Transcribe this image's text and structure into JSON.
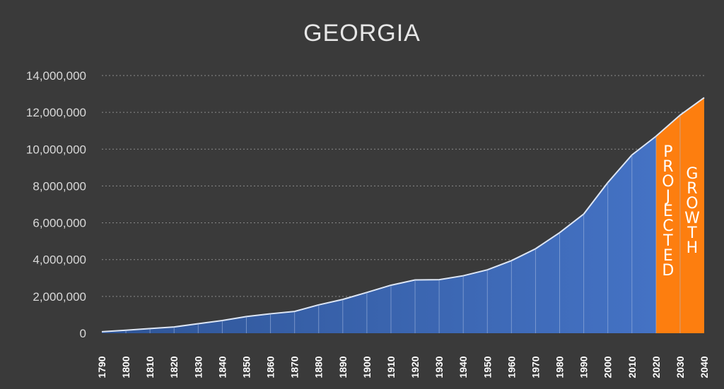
{
  "chart_data": {
    "type": "area",
    "title": "GEORGIA",
    "xlabel": "",
    "ylabel": "",
    "x": [
      "1790",
      "1800",
      "1810",
      "1820",
      "1830",
      "1840",
      "1850",
      "1860",
      "1870",
      "1880",
      "1890",
      "1900",
      "1910",
      "1920",
      "1930",
      "1940",
      "1950",
      "1960",
      "1970",
      "1980",
      "1990",
      "2000",
      "2010",
      "2020",
      "2030",
      "2040"
    ],
    "values": [
      82548,
      162686,
      252433,
      340989,
      516823,
      691392,
      906185,
      1057286,
      1184109,
      1542180,
      1837353,
      2216331,
      2609121,
      2895832,
      2908506,
      3123723,
      3444578,
      3943116,
      4589575,
      5463105,
      6478216,
      8186453,
      9687653,
      10700000,
      11850000,
      12800000
    ],
    "ylim": [
      0,
      14000000
    ],
    "yticks": [
      "0",
      "2,000,000",
      "4,000,000",
      "6,000,000",
      "8,000,000",
      "10,000,000",
      "12,000,000",
      "14,000,000"
    ],
    "grid": true,
    "projection_start": "2020",
    "annotations": [
      "PROJECTED",
      "GROWTH"
    ],
    "colors": {
      "background": "#3a3a3a",
      "historical_fill": "#4472c4",
      "historical_fill_dark": "#2f5597",
      "projected_fill": "#fd7e0f",
      "outline": "#dde6f5",
      "grid": "#8c8c8c"
    }
  }
}
